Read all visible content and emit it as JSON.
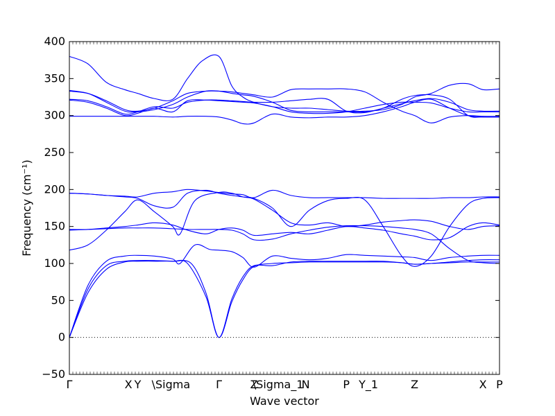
{
  "chart_data": {
    "type": "line",
    "xlabel": "Wave vector",
    "ylabel": "Frequency (cm⁻¹)",
    "ylim": [
      -50,
      400
    ],
    "yticks": [
      -50,
      0,
      50,
      100,
      150,
      200,
      250,
      300,
      350,
      400
    ],
    "grid": false,
    "line_color": "#0000ff",
    "zero_line": {
      "y": 0,
      "style": "dotted",
      "color": "#000000"
    },
    "xlim": [
      0,
      11.65
    ],
    "x_ticks": [
      {
        "x": 0.0,
        "label": "Γ"
      },
      {
        "x": 1.6,
        "label": "X"
      },
      {
        "x": 1.85,
        "label": "Y"
      },
      {
        "x": 2.75,
        "label": "\\Sigma"
      },
      {
        "x": 4.05,
        "label": "Γ"
      },
      {
        "x": 5.0,
        "label": "Z"
      },
      {
        "x": 5.65,
        "label": "\\Sigma_1"
      },
      {
        "x": 6.4,
        "label": "N"
      },
      {
        "x": 7.5,
        "label": "P"
      },
      {
        "x": 8.1,
        "label": "Y_1"
      },
      {
        "x": 9.35,
        "label": "Z"
      },
      {
        "x": 11.2,
        "label": "X"
      },
      {
        "x": 11.65,
        "label": "P"
      }
    ],
    "series": [
      {
        "x": [
          0,
          0.5,
          1.0,
          1.5,
          1.85,
          2.3,
          2.8,
          3.3,
          3.7,
          4.05,
          4.4,
          4.7,
          5.0,
          5.5,
          6.0,
          6.5,
          7.0,
          7.5,
          8.0,
          8.5,
          9.0,
          9.35,
          9.8,
          10.3,
          10.8,
          11.2,
          11.65
        ],
        "values": [
          0,
          60,
          92,
          102,
          103,
          103,
          103,
          100,
          60,
          0,
          48,
          78,
          96,
          100,
          101,
          102,
          102,
          102,
          102,
          102,
          101,
          99,
          100,
          101,
          102,
          102,
          102
        ]
      },
      {
        "x": [
          0,
          0.5,
          1.0,
          1.5,
          1.85,
          2.3,
          2.8,
          3.2,
          3.7,
          4.05,
          4.4,
          4.7,
          5.0,
          5.5,
          6.0,
          6.5,
          7.0,
          7.5,
          8.0,
          8.5,
          9.0,
          9.35,
          9.8,
          10.3,
          10.8,
          11.2,
          11.65
        ],
        "values": [
          0,
          65,
          97,
          103,
          104,
          104,
          103,
          100,
          55,
          0,
          52,
          82,
          97,
          97,
          102,
          103,
          103,
          103,
          103,
          103,
          101,
          99,
          100,
          102,
          104,
          105,
          105
        ]
      },
      {
        "x": [
          0,
          0.5,
          1.0,
          1.5,
          1.85,
          2.3,
          2.8,
          3.0,
          3.4,
          3.8,
          4.05,
          4.4,
          4.7,
          5.0,
          5.5,
          6.0,
          6.5,
          7.0,
          7.5,
          8.0,
          8.5,
          9.0,
          9.35,
          9.8,
          10.3,
          10.8,
          11.2,
          11.65
        ],
        "values": [
          0,
          70,
          103,
          110,
          111,
          110,
          106,
          100,
          125,
          119,
          118,
          116,
          108,
          95,
          110,
          107,
          105,
          107,
          112,
          111,
          110,
          109,
          108,
          104,
          108,
          110,
          111,
          111
        ]
      },
      {
        "x": [
          0,
          0.5,
          1.0,
          1.5,
          1.85,
          2.3,
          2.8,
          3.0,
          3.4,
          4.05,
          4.4,
          4.7,
          5.0,
          5.5,
          6.0,
          6.5,
          7.0,
          7.5,
          8.0,
          8.5,
          9.0,
          9.35,
          9.8,
          10.3,
          10.8,
          11.2,
          11.65
        ],
        "values": [
          118,
          125,
          145,
          170,
          186,
          170,
          150,
          140,
          185,
          196,
          195,
          190,
          187,
          172,
          155,
          152,
          155,
          150,
          152,
          156,
          158,
          159,
          157,
          150,
          146,
          150,
          151
        ]
      },
      {
        "x": [
          0,
          0.5,
          1.0,
          1.5,
          1.85,
          2.3,
          2.8,
          3.2,
          3.7,
          4.05,
          4.4,
          4.7,
          5.0,
          5.5,
          6.0,
          6.5,
          7.0,
          7.5,
          8.0,
          8.5,
          9.0,
          9.35,
          9.8,
          10.3,
          10.8,
          11.2,
          11.65
        ],
        "values": [
          146,
          146,
          148,
          150,
          152,
          155,
          152,
          145,
          140,
          146,
          148,
          145,
          138,
          140,
          142,
          140,
          145,
          150,
          148,
          145,
          140,
          137,
          132,
          135,
          150,
          155,
          152
        ]
      },
      {
        "x": [
          0,
          0.5,
          1.0,
          1.5,
          1.85,
          2.3,
          2.8,
          3.2,
          3.7,
          4.05,
          4.4,
          4.7,
          5.0,
          5.5,
          6.0,
          6.5,
          7.0,
          7.5,
          8.0,
          8.5,
          9.0,
          9.35,
          9.8,
          10.3,
          10.8,
          11.2,
          11.65
        ],
        "values": [
          145,
          146,
          147,
          148,
          148,
          148,
          147,
          146,
          146,
          146,
          145,
          140,
          132,
          133,
          140,
          145,
          149,
          151,
          151,
          150,
          148,
          146,
          140,
          120,
          104,
          101,
          100
        ]
      },
      {
        "x": [
          0,
          0.5,
          1.0,
          1.5,
          1.85,
          2.3,
          2.8,
          3.2,
          3.7,
          4.05,
          4.4,
          4.7,
          5.0,
          5.5,
          6.0,
          6.5,
          7.0,
          7.5,
          8.0,
          8.5,
          9.0,
          9.35,
          9.8,
          10.3,
          10.8,
          11.2,
          11.65
        ],
        "values": [
          195,
          194,
          192,
          190,
          188,
          178,
          176,
          195,
          199,
          195,
          192,
          190,
          188,
          175,
          150,
          172,
          185,
          188,
          186,
          150,
          110,
          96,
          110,
          150,
          180,
          188,
          189
        ]
      },
      {
        "x": [
          0,
          0.5,
          1.0,
          1.5,
          1.85,
          2.3,
          2.8,
          3.2,
          3.7,
          4.05,
          4.4,
          4.7,
          5.0,
          5.5,
          6.0,
          6.5,
          7.0,
          7.5,
          8.0,
          8.5,
          9.0,
          9.35,
          9.8,
          10.3,
          10.8,
          11.2,
          11.65
        ],
        "values": [
          195,
          194,
          192,
          191,
          190,
          195,
          197,
          200,
          198,
          196,
          194,
          193,
          189,
          199,
          192,
          189,
          189,
          189,
          189,
          188,
          188,
          188,
          188,
          189,
          189,
          190,
          190
        ]
      },
      {
        "x": [
          0,
          0.5,
          1.0,
          1.5,
          1.85,
          2.3,
          2.8,
          3.2,
          3.7,
          4.05,
          4.4,
          4.7,
          5.0,
          5.5,
          6.0,
          6.5,
          7.0,
          7.5,
          8.0,
          8.5,
          9.0,
          9.35,
          9.8,
          10.3,
          10.8,
          11.2,
          11.65
        ],
        "values": [
          299,
          299,
          299,
          299,
          299,
          299,
          298,
          299,
          299,
          298,
          294,
          289,
          290,
          302,
          298,
          297,
          298,
          298,
          300,
          305,
          312,
          318,
          322,
          310,
          300,
          298,
          298
        ]
      },
      {
        "x": [
          0,
          0.5,
          1.0,
          1.5,
          1.85,
          2.3,
          2.8,
          3.2,
          3.7,
          4.05,
          4.4,
          4.7,
          5.0,
          5.5,
          6.0,
          6.5,
          7.0,
          7.5,
          8.0,
          8.5,
          9.0,
          9.35,
          9.8,
          10.3,
          10.8,
          11.2,
          11.65
        ],
        "values": [
          321,
          318,
          310,
          300,
          303,
          310,
          305,
          320,
          321,
          320,
          319,
          318,
          317,
          312,
          305,
          303,
          303,
          305,
          310,
          315,
          318,
          318,
          317,
          310,
          305,
          305,
          305
        ]
      },
      {
        "x": [
          0,
          0.5,
          1.0,
          1.5,
          1.85,
          2.3,
          2.8,
          3.2,
          3.7,
          4.05,
          4.4,
          4.7,
          5.0,
          5.5,
          6.0,
          6.5,
          7.0,
          7.5,
          8.0,
          8.5,
          9.0,
          9.35,
          9.8,
          10.3,
          10.8,
          11.2,
          11.65
        ],
        "values": [
          322,
          320,
          312,
          302,
          305,
          312,
          310,
          318,
          321,
          321,
          320,
          319,
          318,
          318,
          320,
          322,
          322,
          306,
          304,
          310,
          316,
          320,
          323,
          318,
          308,
          306,
          306
        ]
      },
      {
        "x": [
          0,
          0.5,
          1.0,
          1.5,
          1.85,
          2.3,
          2.8,
          3.2,
          3.7,
          4.05,
          4.4,
          4.7,
          5.0,
          5.5,
          6.0,
          6.5,
          7.0,
          7.5,
          8.0,
          8.5,
          9.0,
          9.35,
          9.8,
          10.3,
          10.8,
          11.2,
          11.65
        ],
        "values": [
          334,
          330,
          318,
          306,
          305,
          308,
          315,
          325,
          333,
          333,
          330,
          328,
          326,
          318,
          307,
          305,
          305,
          305,
          305,
          310,
          322,
          327,
          328,
          322,
          300,
          298,
          298
        ]
      },
      {
        "x": [
          0,
          0.5,
          1.0,
          1.5,
          1.85,
          2.3,
          2.8,
          3.2,
          3.7,
          4.05,
          4.4,
          4.7,
          5.0,
          5.5,
          6.0,
          6.5,
          7.0,
          7.5,
          8.0,
          8.5,
          9.0,
          9.35,
          9.8,
          10.3,
          10.8,
          11.2,
          11.65
        ],
        "values": [
          333,
          330,
          320,
          308,
          306,
          310,
          320,
          330,
          333,
          333,
          332,
          330,
          328,
          325,
          335,
          336,
          336,
          336,
          332,
          318,
          306,
          300,
          290,
          298,
          300,
          299,
          299
        ]
      },
      {
        "x": [
          0,
          0.5,
          1.0,
          1.5,
          1.85,
          2.3,
          2.8,
          3.2,
          3.6,
          4.05,
          4.4,
          4.7,
          5.0,
          5.5,
          6.0,
          6.5,
          7.0,
          7.5,
          8.0,
          8.5,
          9.0,
          9.35,
          9.8,
          10.3,
          10.8,
          11.2,
          11.65
        ],
        "values": [
          380,
          370,
          345,
          335,
          330,
          323,
          322,
          350,
          374,
          380,
          340,
          325,
          318,
          312,
          310,
          310,
          308,
          306,
          306,
          308,
          315,
          325,
          330,
          341,
          343,
          335,
          336
        ]
      }
    ]
  }
}
